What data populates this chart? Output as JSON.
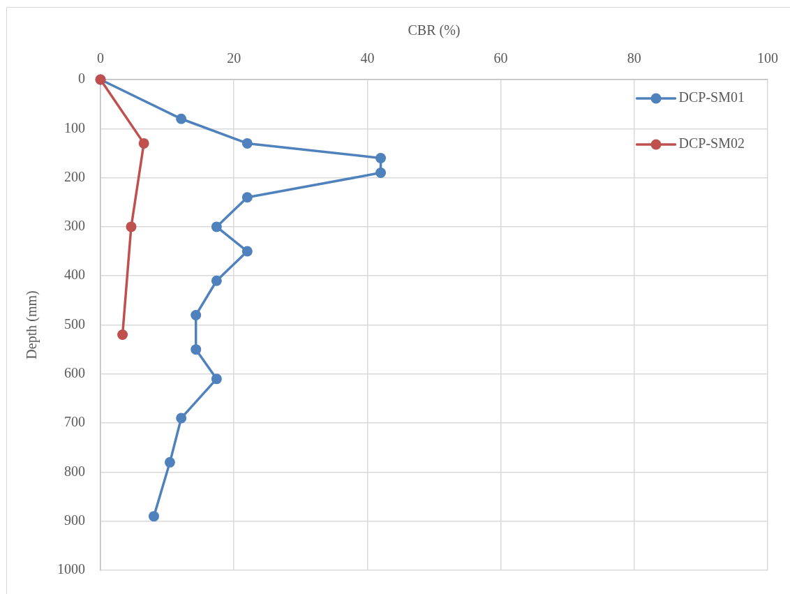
{
  "chart_data": {
    "type": "line",
    "xlabel": "CBR (%)",
    "ylabel": "Depth (mm)",
    "xlim": [
      0,
      100
    ],
    "xticks": [
      0,
      20,
      40,
      60,
      80,
      100
    ],
    "ylim": [
      1000,
      0
    ],
    "yticks": [
      0,
      100,
      200,
      300,
      400,
      500,
      600,
      700,
      800,
      900,
      1000
    ],
    "series": [
      {
        "name": "DCP-SM01",
        "color": "#4f81bd",
        "x": [
          0,
          12.1,
          22,
          42,
          42,
          22,
          17.4,
          22,
          17.4,
          14.3,
          14.3,
          17.4,
          12.1,
          10.4,
          8
        ],
        "values": [
          0,
          80,
          130,
          160,
          190,
          240,
          300,
          350,
          410,
          480,
          550,
          610,
          690,
          780,
          890
        ]
      },
      {
        "name": "DCP-SM02",
        "color": "#c0504d",
        "x": [
          0,
          6.5,
          4.6,
          3.3
        ],
        "values": [
          0,
          130,
          300,
          520
        ]
      }
    ],
    "grid": true,
    "legend": "top right",
    "marker": "circle"
  }
}
